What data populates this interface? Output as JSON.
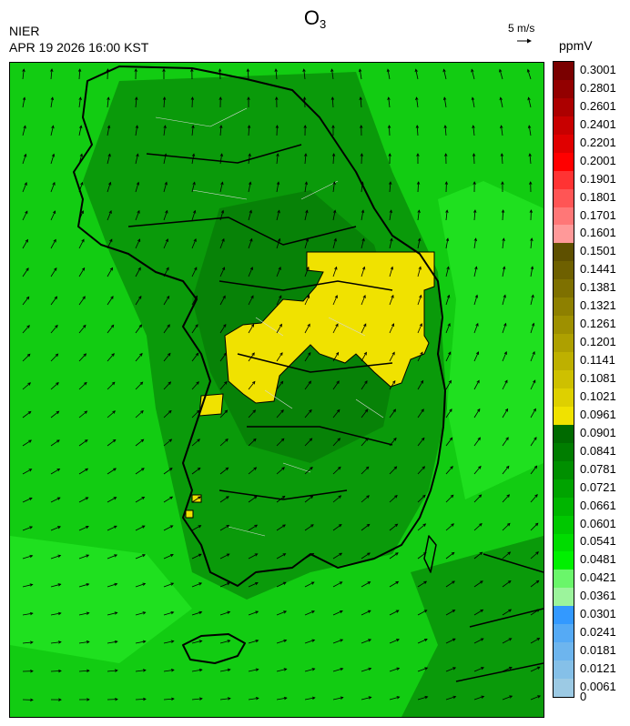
{
  "title": {
    "species": "O",
    "subscript": "3"
  },
  "header": {
    "org": "NIER",
    "datetime": "APR 19 2026 16:00 KST"
  },
  "wind_reference": {
    "label": "5 m/s"
  },
  "colorbar": {
    "unit": "ppmV",
    "levels": [
      {
        "label": "0.3001",
        "color": "#7a0000"
      },
      {
        "label": "0.2801",
        "color": "#930000"
      },
      {
        "label": "0.2601",
        "color": "#ac0000"
      },
      {
        "label": "0.2401",
        "color": "#c80000"
      },
      {
        "label": "0.2201",
        "color": "#e00000"
      },
      {
        "label": "0.2001",
        "color": "#ff0000"
      },
      {
        "label": "0.1901",
        "color": "#ff3333"
      },
      {
        "label": "0.1801",
        "color": "#ff5555"
      },
      {
        "label": "0.1701",
        "color": "#ff7777"
      },
      {
        "label": "0.1601",
        "color": "#ff9999"
      },
      {
        "label": "0.1501",
        "color": "#5e5000"
      },
      {
        "label": "0.1441",
        "color": "#6e6000"
      },
      {
        "label": "0.1381",
        "color": "#7e7000"
      },
      {
        "label": "0.1321",
        "color": "#8e8000"
      },
      {
        "label": "0.1261",
        "color": "#9e9000"
      },
      {
        "label": "0.1201",
        "color": "#aea000"
      },
      {
        "label": "0.1141",
        "color": "#beb000"
      },
      {
        "label": "0.1081",
        "color": "#cec000"
      },
      {
        "label": "0.1021",
        "color": "#ded000"
      },
      {
        "label": "0.0961",
        "color": "#f0e200"
      },
      {
        "label": "0.0901",
        "color": "#006a00"
      },
      {
        "label": "0.0841",
        "color": "#007d00"
      },
      {
        "label": "0.0781",
        "color": "#008f00"
      },
      {
        "label": "0.0721",
        "color": "#00a300"
      },
      {
        "label": "0.0661",
        "color": "#00b500"
      },
      {
        "label": "0.0601",
        "color": "#00c800"
      },
      {
        "label": "0.0541",
        "color": "#00dc00"
      },
      {
        "label": "0.0481",
        "color": "#00f000"
      },
      {
        "label": "0.0421",
        "color": "#6af66a"
      },
      {
        "label": "0.0361",
        "color": "#9cf49c"
      },
      {
        "label": "0.0301",
        "color": "#3399ff"
      },
      {
        "label": "0.0241",
        "color": "#55aaf5"
      },
      {
        "label": "0.0181",
        "color": "#6db5ee"
      },
      {
        "label": "0.0121",
        "color": "#85c0e8"
      },
      {
        "label": "0.0061",
        "color": "#9ccae4"
      },
      {
        "label": "0",
        "color": null
      }
    ]
  },
  "map": {
    "base_color": "#12cc12",
    "dark_color": "#0a9a0a",
    "darker_color": "#078207",
    "light_color": "#1fe01f",
    "hotspot_color": "#f0e200",
    "coast_color": "#000000"
  }
}
